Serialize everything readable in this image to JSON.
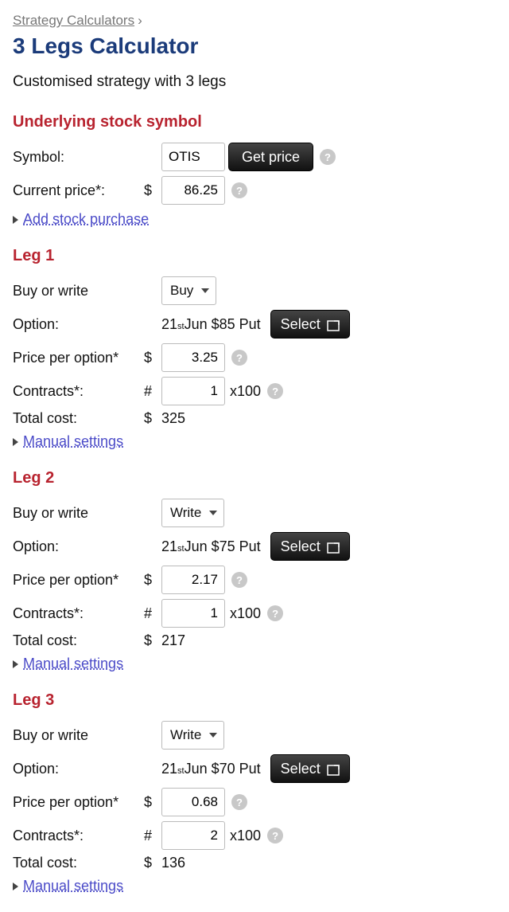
{
  "breadcrumb": {
    "parent": "Strategy Calculators"
  },
  "page": {
    "title": "3 Legs Calculator",
    "subtitle": "Customised strategy with 3 legs"
  },
  "sections": {
    "underlying_title": "Underlying stock symbol"
  },
  "labels": {
    "symbol": "Symbol:",
    "current_price": "Current price*:",
    "buy_write": "Buy or write",
    "option": "Option:",
    "price_per_option": "Price per option*",
    "contracts": "Contracts*:",
    "total_cost": "Total cost:",
    "add_stock": "Add stock purchase",
    "manual_settings": "Manual settings",
    "get_price": "Get price",
    "select": "Select",
    "x100": "x100",
    "currency": "$",
    "hash": "#"
  },
  "underlying": {
    "symbol": "OTIS",
    "current_price": "86.25"
  },
  "legs": [
    {
      "title": "Leg 1",
      "action": "Buy",
      "option_day": "21",
      "option_day_suffix": "st",
      "option_rest": " Jun $85 Put",
      "price_per_option": "3.25",
      "contracts": "1",
      "total_cost": "325"
    },
    {
      "title": "Leg 2",
      "action": "Write",
      "option_day": "21",
      "option_day_suffix": "st",
      "option_rest": " Jun $75 Put",
      "price_per_option": "2.17",
      "contracts": "1",
      "total_cost": "217"
    },
    {
      "title": "Leg 3",
      "action": "Write",
      "option_day": "21",
      "option_day_suffix": "st",
      "option_rest": " Jun $70 Put",
      "price_per_option": "0.68",
      "contracts": "2",
      "total_cost": "136"
    }
  ],
  "colors": {
    "heading_blue": "#1b3b7a",
    "section_red": "#b8232f",
    "link_purple": "#4b4bc8",
    "button_bg_top": "#444444",
    "button_bg_bottom": "#111111",
    "help_bg": "#c8c8c8"
  }
}
